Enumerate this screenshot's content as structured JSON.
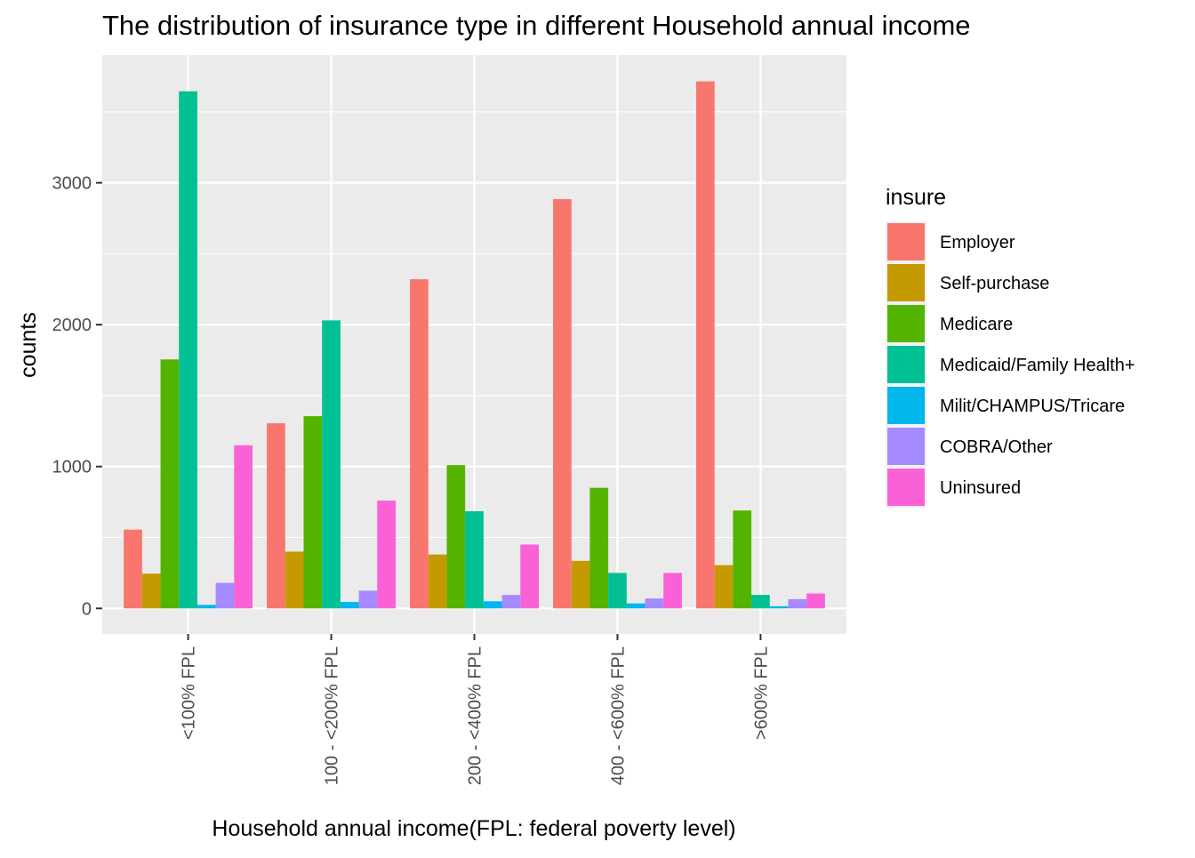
{
  "chart_data": {
    "type": "bar",
    "title": "The distribution of insurance type in different Household annual income",
    "xlabel": "Household annual income(FPL: federal poverty level)",
    "ylabel": "counts",
    "categories": [
      "<100% FPL",
      "100 - <200% FPL",
      "200 - <400% FPL",
      "400 - <600% FPL",
      ">600% FPL"
    ],
    "yticks": [
      0,
      1000,
      2000,
      3000
    ],
    "ylim": [
      -180,
      3900
    ],
    "grid": true,
    "legend": {
      "title": "insure",
      "position": "right"
    },
    "series": [
      {
        "name": "Employer",
        "color": "#F8766D",
        "values": [
          555,
          1305,
          2320,
          2885,
          3715
        ]
      },
      {
        "name": "Self-purchase",
        "color": "#C49A00",
        "values": [
          245,
          400,
          380,
          335,
          305
        ]
      },
      {
        "name": "Medicare",
        "color": "#53B400",
        "values": [
          1755,
          1355,
          1010,
          850,
          690
        ]
      },
      {
        "name": "Medicaid/Family Health+",
        "color": "#00C094",
        "values": [
          3645,
          2030,
          685,
          250,
          95
        ]
      },
      {
        "name": "Milit/CHAMPUS/Tricare",
        "color": "#00B6EB",
        "values": [
          25,
          45,
          50,
          35,
          15
        ]
      },
      {
        "name": "COBRA/Other",
        "color": "#A58AFF",
        "values": [
          180,
          125,
          95,
          70,
          65
        ]
      },
      {
        "name": "Uninsured",
        "color": "#FB61D7",
        "values": [
          1150,
          760,
          450,
          250,
          105
        ]
      }
    ]
  }
}
